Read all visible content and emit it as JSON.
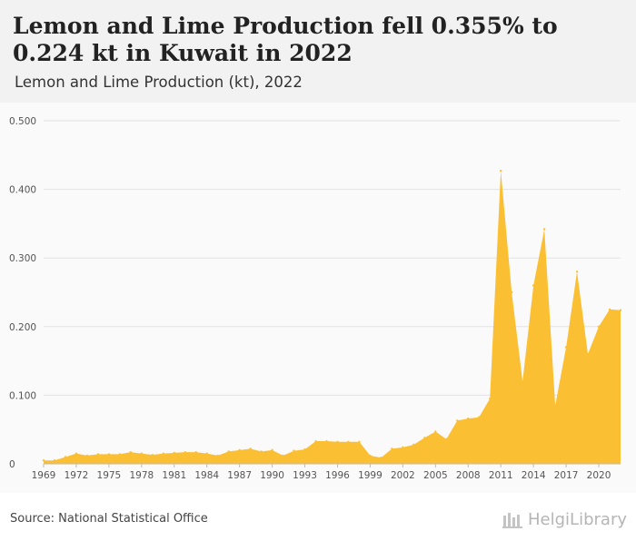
{
  "header": {
    "title": "Lemon and Lime Production fell 0.355% to 0.224 kt in Kuwait in 2022",
    "subtitle": "Lemon and Lime Production (kt), 2022"
  },
  "footer": {
    "source": "Source: National Statistical Office",
    "brand": "HelgiLibrary"
  },
  "colors": {
    "area": "#fbbf33",
    "grid": "#e2e2e2",
    "axis_text": "#555555"
  },
  "chart_data": {
    "type": "area",
    "x": [
      1969,
      1970,
      1971,
      1972,
      1973,
      1974,
      1975,
      1976,
      1977,
      1978,
      1979,
      1980,
      1981,
      1982,
      1983,
      1984,
      1985,
      1986,
      1987,
      1988,
      1989,
      1990,
      1991,
      1992,
      1993,
      1994,
      1995,
      1996,
      1997,
      1998,
      1999,
      2000,
      2001,
      2002,
      2003,
      2004,
      2005,
      2006,
      2007,
      2008,
      2009,
      2010,
      2011,
      2012,
      2013,
      2014,
      2015,
      2016,
      2017,
      2018,
      2019,
      2020,
      2021,
      2022
    ],
    "values": [
      0.005,
      0.005,
      0.01,
      0.015,
      0.012,
      0.014,
      0.014,
      0.014,
      0.017,
      0.015,
      0.013,
      0.015,
      0.016,
      0.017,
      0.017,
      0.015,
      0.012,
      0.018,
      0.02,
      0.022,
      0.018,
      0.02,
      0.012,
      0.019,
      0.021,
      0.033,
      0.033,
      0.032,
      0.032,
      0.032,
      0.012,
      0.009,
      0.022,
      0.024,
      0.028,
      0.038,
      0.047,
      0.036,
      0.063,
      0.066,
      0.068,
      0.095,
      0.427,
      0.25,
      0.12,
      0.26,
      0.342,
      0.085,
      0.17,
      0.28,
      0.16,
      0.2,
      0.225,
      0.224
    ],
    "x_ticks": [
      "1969",
      "1972",
      "1975",
      "1978",
      "1981",
      "1984",
      "1987",
      "1990",
      "1993",
      "1996",
      "1999",
      "2002",
      "2005",
      "2008",
      "2011",
      "2014",
      "2017",
      "2020"
    ],
    "y_ticks": [
      "0",
      "0.100",
      "0.200",
      "0.300",
      "0.400",
      "0.500"
    ],
    "ylim": [
      0,
      0.5
    ],
    "grid": true,
    "xlabel": "",
    "ylabel": ""
  }
}
